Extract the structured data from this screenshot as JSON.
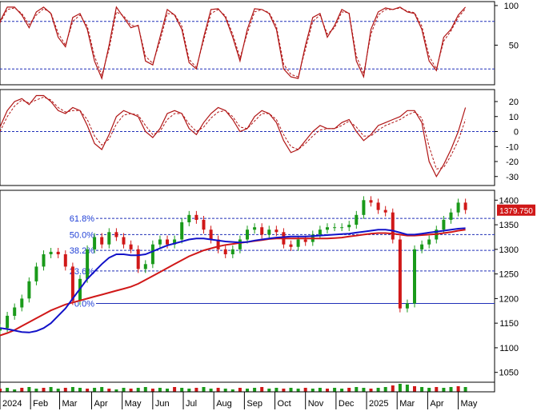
{
  "chart_data": [
    {
      "type": "line",
      "panel": "oscillator-top",
      "ylim": [
        0,
        105
      ],
      "yticks": [
        "100",
        "50"
      ],
      "ytick_values": [
        100,
        50
      ],
      "levels": [
        80,
        20
      ],
      "colors": {
        "line": "#b01515",
        "signal": "#b01515",
        "level": "#1f2fb8"
      },
      "x": [
        0,
        5,
        10,
        15,
        20,
        25,
        30,
        35,
        40,
        45,
        50,
        55,
        60,
        65,
        70,
        75,
        80,
        85,
        90,
        95,
        100,
        105,
        110,
        115,
        120,
        125,
        130,
        135,
        140,
        145,
        150,
        155,
        160,
        165,
        170,
        175,
        180,
        185,
        190,
        195,
        200,
        205,
        210,
        215,
        220,
        225,
        230,
        235,
        240,
        245,
        250,
        255,
        260,
        265,
        270,
        275,
        280,
        285,
        290,
        295,
        300,
        305,
        310,
        315,
        320
      ],
      "series": [
        {
          "values": [
            80,
            98,
            98,
            88,
            72,
            92,
            98,
            90,
            60,
            48,
            85,
            90,
            70,
            30,
            8,
            50,
            98,
            85,
            72,
            75,
            30,
            25,
            60,
            95,
            88,
            70,
            28,
            20,
            60,
            95,
            96,
            85,
            60,
            30,
            70,
            96,
            95,
            90,
            70,
            20,
            10,
            8,
            50,
            85,
            90,
            60,
            75,
            95,
            90,
            30,
            10,
            70,
            92,
            97,
            95,
            98,
            92,
            90,
            70,
            30,
            18,
            60,
            70,
            88,
            98
          ]
        },
        {
          "values": [
            78,
            95,
            97,
            90,
            76,
            88,
            96,
            91,
            65,
            50,
            80,
            88,
            74,
            36,
            12,
            45,
            92,
            87,
            75,
            74,
            36,
            27,
            55,
            90,
            89,
            74,
            32,
            22,
            56,
            90,
            95,
            87,
            64,
            34,
            65,
            92,
            95,
            91,
            74,
            26,
            13,
            10,
            45,
            80,
            88,
            64,
            72,
            92,
            91,
            36,
            14,
            64,
            88,
            95,
            95,
            97,
            93,
            91,
            74,
            36,
            20,
            55,
            68,
            85,
            96
          ]
        }
      ]
    },
    {
      "type": "line",
      "panel": "oscillator-middle",
      "ylim": [
        -36,
        28
      ],
      "yticks": [
        "20",
        "10",
        "0",
        "-10",
        "-20",
        "-30"
      ],
      "ytick_values": [
        20,
        10,
        0,
        -10,
        -20,
        -30
      ],
      "levels": [
        0
      ],
      "colors": {
        "line": "#b01515",
        "signal": "#b01515",
        "level": "#1f2fb8"
      },
      "x": [
        0,
        5,
        10,
        15,
        20,
        25,
        30,
        35,
        40,
        45,
        50,
        55,
        60,
        65,
        70,
        75,
        80,
        85,
        90,
        95,
        100,
        105,
        110,
        115,
        120,
        125,
        130,
        135,
        140,
        145,
        150,
        155,
        160,
        165,
        170,
        175,
        180,
        185,
        190,
        195,
        200,
        205,
        210,
        215,
        220,
        225,
        230,
        235,
        240,
        245,
        250,
        255,
        260,
        265,
        270,
        275,
        280,
        285,
        290,
        295,
        300,
        305,
        310,
        315,
        320
      ],
      "series": [
        {
          "values": [
            3,
            14,
            20,
            22,
            18,
            24,
            24,
            20,
            14,
            12,
            16,
            14,
            4,
            -8,
            -12,
            -2,
            10,
            14,
            12,
            10,
            0,
            -4,
            2,
            12,
            14,
            12,
            2,
            -2,
            6,
            12,
            16,
            14,
            8,
            0,
            2,
            10,
            14,
            12,
            6,
            -6,
            -14,
            -12,
            -6,
            0,
            4,
            2,
            2,
            6,
            8,
            0,
            -6,
            -2,
            4,
            6,
            8,
            10,
            14,
            14,
            6,
            -20,
            -30,
            -22,
            -12,
            0,
            16
          ]
        },
        {
          "values": [
            0,
            10,
            17,
            21,
            19,
            21,
            23,
            21,
            16,
            13,
            14,
            14,
            8,
            -3,
            -9,
            -5,
            5,
            11,
            12,
            11,
            4,
            -2,
            0,
            8,
            12,
            12,
            5,
            0,
            3,
            9,
            13,
            14,
            10,
            3,
            2,
            7,
            12,
            12,
            8,
            -2,
            -10,
            -12,
            -8,
            -3,
            1,
            2,
            2,
            4,
            7,
            3,
            -3,
            -3,
            1,
            4,
            6,
            8,
            11,
            13,
            9,
            -10,
            -25,
            -24,
            -16,
            -6,
            8
          ]
        }
      ]
    },
    {
      "type": "candlestick",
      "panel": "price",
      "ylim": [
        1030,
        1420
      ],
      "yticks": [
        "1400",
        "1350",
        "1300",
        "1250",
        "1200",
        "1150",
        "1100",
        "1050"
      ],
      "ytick_values": [
        1400,
        1350,
        1300,
        1250,
        1200,
        1150,
        1100,
        1050
      ],
      "last_value": "1379.750",
      "fib_levels": [
        {
          "label": "61.8%",
          "value": 1363
        },
        {
          "label": "50.0%",
          "value": 1330
        },
        {
          "label": "38.2%",
          "value": 1298
        },
        {
          "label": "23.6%",
          "value": 1256
        },
        {
          "label": "0.0%",
          "value": 1190
        }
      ],
      "colors": {
        "up": "#1a9a1a",
        "down": "#d01818",
        "ma_fast": "#1212c8",
        "ma_slow": "#d01818",
        "fib_line": "#1f2fb8",
        "last_bg": "#d01818"
      },
      "x": [
        0,
        5,
        10,
        15,
        20,
        25,
        30,
        35,
        40,
        45,
        50,
        55,
        60,
        65,
        70,
        75,
        80,
        85,
        90,
        95,
        100,
        105,
        110,
        115,
        120,
        125,
        130,
        135,
        140,
        145,
        150,
        155,
        160,
        165,
        170,
        175,
        180,
        185,
        190,
        195,
        200,
        205,
        210,
        215,
        220,
        225,
        230,
        235,
        240,
        245,
        250,
        255,
        260,
        265,
        270,
        275,
        280,
        285,
        290,
        295,
        300,
        305,
        310,
        315,
        320
      ],
      "close": [
        1140,
        1165,
        1182,
        1200,
        1235,
        1265,
        1290,
        1295,
        1290,
        1265,
        1195,
        1240,
        1300,
        1325,
        1310,
        1335,
        1325,
        1310,
        1300,
        1260,
        1270,
        1310,
        1320,
        1310,
        1320,
        1355,
        1370,
        1360,
        1340,
        1320,
        1300,
        1290,
        1300,
        1320,
        1340,
        1345,
        1330,
        1340,
        1335,
        1310,
        1305,
        1320,
        1315,
        1330,
        1340,
        1345,
        1345,
        1345,
        1350,
        1370,
        1400,
        1395,
        1380,
        1375,
        1320,
        1180,
        1190,
        1300,
        1310,
        1320,
        1340,
        1360,
        1375,
        1395,
        1380
      ],
      "ma_fast": [
        1140,
        1138,
        1135,
        1132,
        1131,
        1134,
        1140,
        1150,
        1165,
        1180,
        1200,
        1220,
        1240,
        1255,
        1270,
        1283,
        1290,
        1290,
        1288,
        1288,
        1290,
        1296,
        1302,
        1308,
        1312,
        1316,
        1320,
        1322,
        1322,
        1320,
        1318,
        1316,
        1315,
        1314,
        1315,
        1318,
        1320,
        1322,
        1324,
        1325,
        1326,
        1326,
        1326,
        1327,
        1328,
        1329,
        1330,
        1331,
        1332,
        1334,
        1336,
        1338,
        1340,
        1340,
        1338,
        1334,
        1330,
        1330,
        1332,
        1334,
        1336,
        1338,
        1340,
        1342,
        1343
      ],
      "ma_slow": [
        1125,
        1130,
        1136,
        1144,
        1152,
        1160,
        1168,
        1176,
        1182,
        1188,
        1192,
        1196,
        1200,
        1204,
        1208,
        1212,
        1216,
        1220,
        1224,
        1230,
        1238,
        1246,
        1254,
        1262,
        1270,
        1278,
        1286,
        1292,
        1298,
        1302,
        1306,
        1309,
        1311,
        1313,
        1315,
        1317,
        1319,
        1321,
        1322,
        1322,
        1322,
        1322,
        1322,
        1322,
        1322,
        1322,
        1323,
        1324,
        1326,
        1328,
        1330,
        1332,
        1333,
        1333,
        1332,
        1330,
        1328,
        1328,
        1329,
        1330,
        1331,
        1333,
        1335,
        1338,
        1340
      ]
    },
    {
      "type": "bar",
      "panel": "volume",
      "colors": {
        "bar": "#1a9a1a",
        "bar_down": "#d01818"
      },
      "x": [
        0,
        5,
        10,
        15,
        20,
        25,
        30,
        35,
        40,
        45,
        50,
        55,
        60,
        65,
        70,
        75,
        80,
        85,
        90,
        95,
        100,
        105,
        110,
        115,
        120,
        125,
        130,
        135,
        140,
        145,
        150,
        155,
        160,
        165,
        170,
        175,
        180,
        185,
        190,
        195,
        200,
        205,
        210,
        215,
        220,
        225,
        230,
        235,
        240,
        245,
        250,
        255,
        260,
        265,
        270,
        275,
        280,
        285,
        290,
        295,
        300,
        305,
        310,
        315,
        320
      ],
      "values": [
        0.4,
        0.5,
        0.3,
        0.5,
        0.6,
        0.4,
        0.5,
        0.6,
        0.4,
        0.5,
        0.6,
        0.5,
        0.4,
        0.5,
        0.6,
        0.4,
        0.3,
        0.5,
        0.4,
        0.5,
        0.6,
        0.4,
        0.5,
        0.4,
        0.6,
        0.5,
        0.4,
        0.5,
        0.6,
        0.4,
        0.5,
        0.4,
        0.3,
        0.5,
        0.4,
        0.5,
        0.6,
        0.4,
        0.5,
        0.4,
        0.5,
        0.4,
        0.5,
        0.4,
        0.5,
        0.4,
        0.5,
        0.4,
        0.5,
        0.6,
        0.5,
        0.4,
        0.5,
        0.6,
        0.8,
        1.0,
        0.9,
        0.7,
        0.6,
        0.5,
        0.6,
        0.5,
        0.6,
        0.7,
        0.6
      ]
    }
  ],
  "time_axis": {
    "labels": [
      "2024",
      "Feb",
      "Mar",
      "Apr",
      "May",
      "Jun",
      "Jul",
      "Aug",
      "Sep",
      "Oct",
      "Nov",
      "Dec",
      "2025",
      "Mar",
      "Apr",
      "May"
    ],
    "positions": [
      0,
      21,
      41,
      63,
      84,
      105,
      126,
      147,
      168,
      189,
      210,
      231,
      252,
      273,
      294,
      315
    ],
    "x_range": [
      0,
      340
    ]
  }
}
